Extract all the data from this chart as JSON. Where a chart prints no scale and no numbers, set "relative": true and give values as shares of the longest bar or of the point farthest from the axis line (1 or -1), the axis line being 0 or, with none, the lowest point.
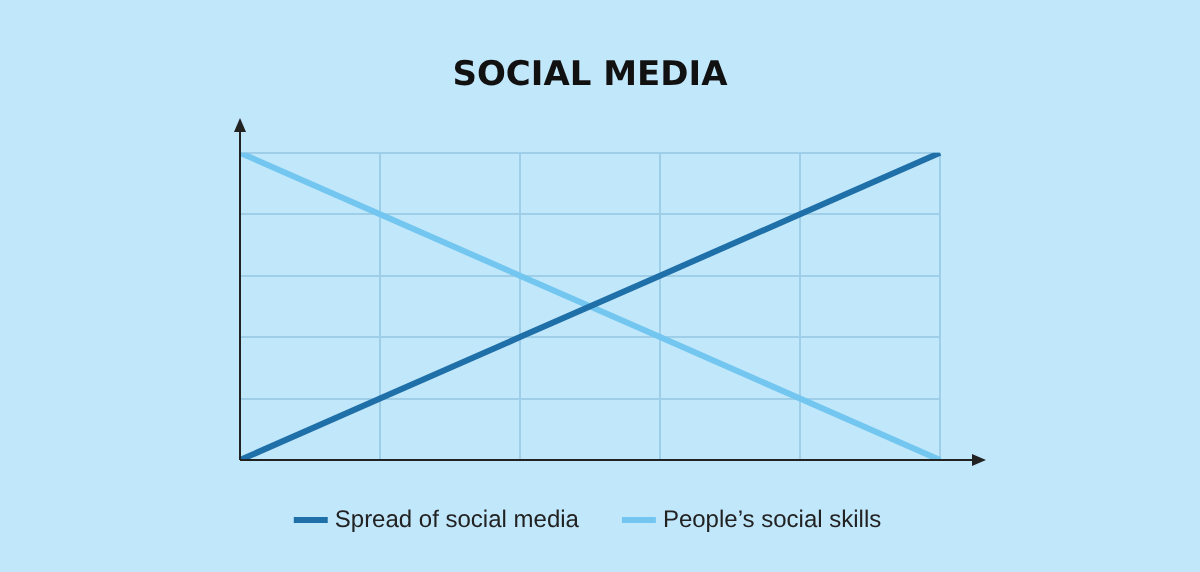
{
  "chart_data": {
    "type": "line",
    "title": "SOCIAL MEDIA",
    "relative": true,
    "categories": [
      null,
      null,
      null,
      null,
      null,
      null
    ],
    "series": [
      {
        "name": "Spread of social media",
        "color": "#1f6fa8",
        "values": [
          0,
          0.2,
          0.4,
          0.6,
          0.8,
          1
        ]
      },
      {
        "name": "People’s social skills",
        "color": "#72c6ef",
        "values": [
          1,
          0.8,
          0.6,
          0.4,
          0.2,
          0
        ]
      }
    ],
    "grid": true,
    "legend": "bottom",
    "marker": "none",
    "line_style": "solid",
    "tick_labels": false
  }
}
